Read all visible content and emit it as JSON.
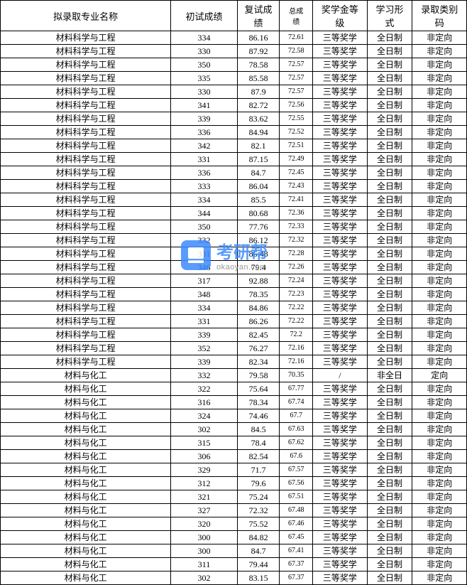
{
  "table": {
    "columns": [
      {
        "key": "major",
        "label": "拟录取专业名称",
        "class": "col-major"
      },
      {
        "key": "primary",
        "label": "初试成绩",
        "class": "col-primary"
      },
      {
        "key": "retest",
        "label": "复试成\n绩",
        "class": "col-retest"
      },
      {
        "key": "total",
        "label": "总成\n绩",
        "class": "col-total"
      },
      {
        "key": "scholarship",
        "label": "奖学金等\n级",
        "class": "col-scholarship"
      },
      {
        "key": "studymode",
        "label": "学习形\n式",
        "class": "col-studymode"
      },
      {
        "key": "admittype",
        "label": "录取类别\n码",
        "class": "col-admittype"
      }
    ],
    "rows": [
      [
        "材料科学与工程",
        "334",
        "86.16",
        "72.61",
        "三等奖学",
        "全日制",
        "非定向"
      ],
      [
        "材料科学与工程",
        "330",
        "87.92",
        "72.58",
        "三等奖学",
        "全日制",
        "非定向"
      ],
      [
        "材料科学与工程",
        "350",
        "78.58",
        "72.57",
        "三等奖学",
        "全日制",
        "非定向"
      ],
      [
        "材料科学与工程",
        "335",
        "85.58",
        "72.57",
        "三等奖学",
        "全日制",
        "非定向"
      ],
      [
        "材料科学与工程",
        "330",
        "87.9",
        "72.57",
        "三等奖学",
        "全日制",
        "非定向"
      ],
      [
        "材料科学与工程",
        "341",
        "82.72",
        "72.56",
        "三等奖学",
        "全日制",
        "非定向"
      ],
      [
        "材料科学与工程",
        "339",
        "83.62",
        "72.55",
        "三等奖学",
        "全日制",
        "非定向"
      ],
      [
        "材料科学与工程",
        "336",
        "84.94",
        "72.52",
        "三等奖学",
        "全日制",
        "非定向"
      ],
      [
        "材料科学与工程",
        "342",
        "82.1",
        "72.51",
        "三等奖学",
        "全日制",
        "非定向"
      ],
      [
        "材料科学与工程",
        "331",
        "87.15",
        "72.49",
        "三等奖学",
        "全日制",
        "非定向"
      ],
      [
        "材料科学与工程",
        "336",
        "84.7",
        "72.45",
        "三等奖学",
        "全日制",
        "非定向"
      ],
      [
        "材料科学与工程",
        "333",
        "86.04",
        "72.43",
        "三等奖学",
        "全日制",
        "非定向"
      ],
      [
        "材料科学与工程",
        "334",
        "85.5",
        "72.41",
        "三等奖学",
        "全日制",
        "非定向"
      ],
      [
        "材料科学与工程",
        "344",
        "80.68",
        "72.36",
        "三等奖学",
        "全日制",
        "非定向"
      ],
      [
        "材料科学与工程",
        "350",
        "77.76",
        "72.33",
        "三等奖学",
        "全日制",
        "非定向"
      ],
      [
        "材料科学与工程",
        "332",
        "86.12",
        "72.32",
        "三等奖学",
        "全日制",
        "非定向"
      ],
      [
        "材料科学与工程",
        "331",
        "86.48",
        "72.28",
        "三等奖学",
        "全日制",
        "非定向"
      ],
      [
        "材料科学与工程",
        "346",
        "79.4",
        "72.26",
        "三等奖学",
        "全日制",
        "非定向"
      ],
      [
        "材料科学与工程",
        "317",
        "92.88",
        "72.24",
        "三等奖学",
        "全日制",
        "非定向"
      ],
      [
        "材料科学与工程",
        "348",
        "78.35",
        "72.23",
        "三等奖学",
        "全日制",
        "非定向"
      ],
      [
        "材料科学与工程",
        "334",
        "84.86",
        "72.22",
        "三等奖学",
        "全日制",
        "非定向"
      ],
      [
        "材料科学与工程",
        "331",
        "86.26",
        "72.22",
        "三等奖学",
        "全日制",
        "非定向"
      ],
      [
        "材料科学与工程",
        "339",
        "82.45",
        "72.2",
        "三等奖学",
        "全日制",
        "非定向"
      ],
      [
        "材料科学与工程",
        "352",
        "76.27",
        "72.16",
        "三等奖学",
        "全日制",
        "非定向"
      ],
      [
        "材料科学与工程",
        "339",
        "82.34",
        "72.16",
        "三等奖学",
        "全日制",
        "非定向"
      ],
      [
        "材料与化工",
        "332",
        "79.58",
        "70.35",
        "/",
        "非全日",
        "定向"
      ],
      [
        "材料与化工",
        "322",
        "75.64",
        "67.77",
        "三等奖学",
        "全日制",
        "非定向"
      ],
      [
        "材料与化工",
        "316",
        "78.34",
        "67.74",
        "三等奖学",
        "全日制",
        "非定向"
      ],
      [
        "材料与化工",
        "324",
        "74.46",
        "67.7",
        "三等奖学",
        "全日制",
        "非定向"
      ],
      [
        "材料与化工",
        "302",
        "84.5",
        "67.63",
        "三等奖学",
        "全日制",
        "非定向"
      ],
      [
        "材料与化工",
        "315",
        "78.4",
        "67.62",
        "三等奖学",
        "全日制",
        "非定向"
      ],
      [
        "材料与化工",
        "306",
        "82.54",
        "67.6",
        "三等奖学",
        "全日制",
        "非定向"
      ],
      [
        "材料与化工",
        "329",
        "71.7",
        "67.57",
        "三等奖学",
        "全日制",
        "非定向"
      ],
      [
        "材料与化工",
        "312",
        "79.6",
        "67.56",
        "三等奖学",
        "全日制",
        "非定向"
      ],
      [
        "材料与化工",
        "321",
        "75.24",
        "67.51",
        "三等奖学",
        "全日制",
        "非定向"
      ],
      [
        "材料与化工",
        "327",
        "72.32",
        "67.48",
        "三等奖学",
        "全日制",
        "非定向"
      ],
      [
        "材料与化工",
        "320",
        "75.52",
        "67.46",
        "三等奖学",
        "全日制",
        "非定向"
      ],
      [
        "材料与化工",
        "300",
        "84.82",
        "67.45",
        "三等奖学",
        "全日制",
        "非定向"
      ],
      [
        "材料与化工",
        "300",
        "84.7",
        "67.41",
        "三等奖学",
        "全日制",
        "非定向"
      ],
      [
        "材料与化工",
        "311",
        "79.44",
        "67.37",
        "三等奖学",
        "全日制",
        "非定向"
      ],
      [
        "材料与化工",
        "302",
        "83.15",
        "67.37",
        "三等奖学",
        "全日制",
        "非定向"
      ]
    ]
  },
  "watermark": {
    "cn": "考研帮",
    "url": "okaoyan.com"
  },
  "styling": {
    "border_color": "#000000",
    "background_color": "#ffffff",
    "font_family": "SimSun",
    "header_fontsize": 13,
    "cell_fontsize": 12,
    "total_fontsize": 10,
    "watermark_color": "#3d8bfd",
    "watermark_url_color": "#888888"
  }
}
